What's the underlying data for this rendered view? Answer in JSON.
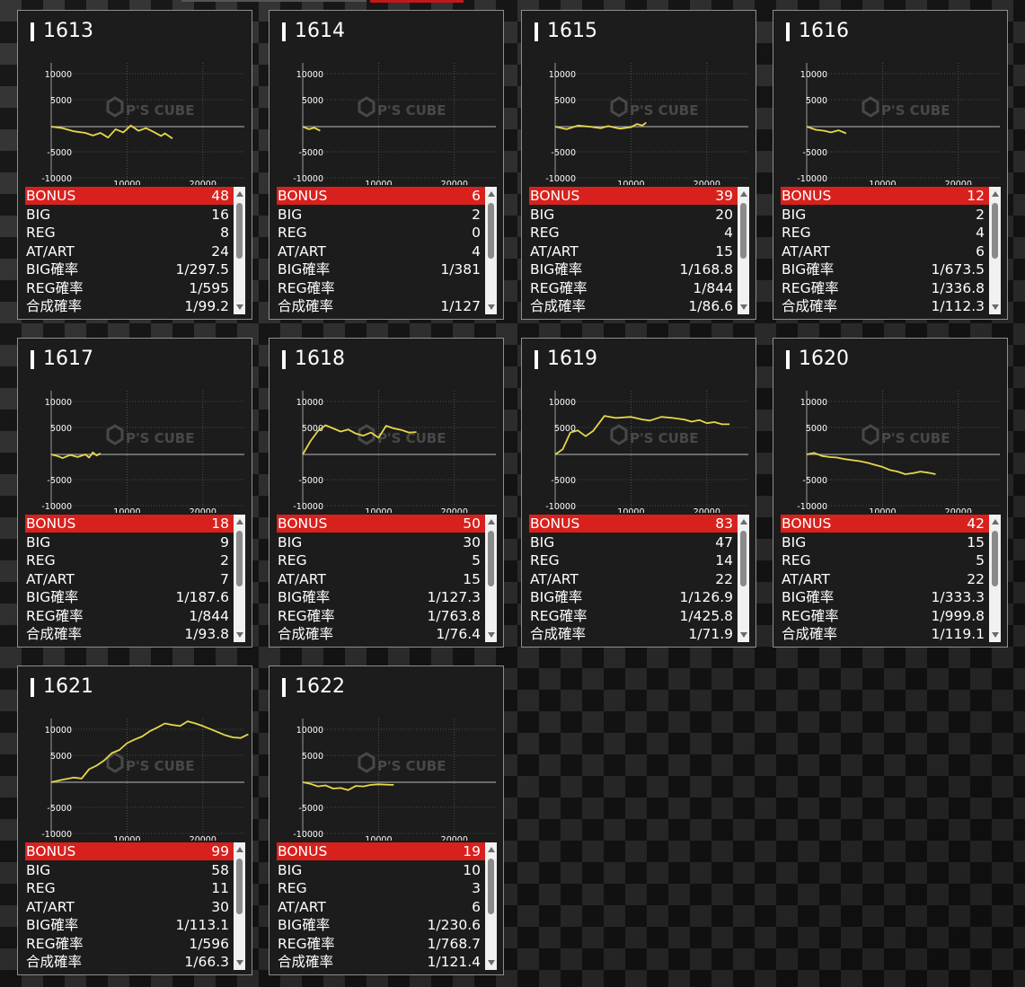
{
  "labels": {
    "bonus": "BONUS",
    "big": "BIG",
    "reg": "REG",
    "atart": "AT/ART",
    "big_rate": "BIG確率",
    "reg_rate": "REG確率",
    "total_rate": "合成確率"
  },
  "axis": {
    "y_ticks": [
      "10000",
      "5000",
      "-5000",
      "-10000"
    ],
    "x_ticks": [
      "10000",
      "20000"
    ],
    "y_range": [
      -12000,
      12000
    ],
    "x_range": [
      0,
      28000
    ]
  },
  "watermark": "P'S CUBE",
  "colors": {
    "line": "#e6d84a",
    "bonus_bg": "#d8211d",
    "card_bg": "#1c1c1c"
  },
  "machines": [
    {
      "id": "1613",
      "bonus": "48",
      "big": "16",
      "reg": "8",
      "atart": "24",
      "big_rate": "1/297.5",
      "reg_rate": "1/595",
      "total_rate": "1/99.2",
      "graph": [
        [
          0,
          0
        ],
        [
          1500,
          -300
        ],
        [
          3000,
          -900
        ],
        [
          4500,
          -1200
        ],
        [
          5500,
          -1700
        ],
        [
          6500,
          -1200
        ],
        [
          7500,
          -2100
        ],
        [
          8500,
          -500
        ],
        [
          9500,
          -1100
        ],
        [
          10500,
          200
        ],
        [
          11500,
          -800
        ],
        [
          12500,
          -300
        ],
        [
          13500,
          -1000
        ],
        [
          14500,
          -1800
        ],
        [
          15000,
          -1300
        ],
        [
          16000,
          -2300
        ]
      ]
    },
    {
      "id": "1614",
      "bonus": "6",
      "big": "2",
      "reg": "0",
      "atart": "4",
      "big_rate": "1/381",
      "reg_rate": "",
      "total_rate": "1/127",
      "graph": [
        [
          0,
          0
        ],
        [
          800,
          -500
        ],
        [
          1500,
          -200
        ],
        [
          2300,
          -800
        ]
      ]
    },
    {
      "id": "1615",
      "bonus": "39",
      "big": "20",
      "reg": "4",
      "atart": "15",
      "big_rate": "1/168.8",
      "reg_rate": "1/844",
      "total_rate": "1/86.6",
      "graph": [
        [
          0,
          0
        ],
        [
          1500,
          -500
        ],
        [
          3000,
          200
        ],
        [
          4500,
          0
        ],
        [
          6000,
          -300
        ],
        [
          7000,
          100
        ],
        [
          8500,
          -400
        ],
        [
          10000,
          -100
        ],
        [
          10800,
          500
        ],
        [
          11500,
          200
        ],
        [
          12000,
          800
        ]
      ]
    },
    {
      "id": "1616",
      "bonus": "12",
      "big": "2",
      "reg": "4",
      "atart": "6",
      "big_rate": "1/673.5",
      "reg_rate": "1/336.8",
      "total_rate": "1/112.3",
      "graph": [
        [
          0,
          0
        ],
        [
          1200,
          -600
        ],
        [
          2300,
          -800
        ],
        [
          3200,
          -1100
        ],
        [
          4200,
          -700
        ],
        [
          5200,
          -1300
        ]
      ]
    },
    {
      "id": "1617",
      "bonus": "18",
      "big": "9",
      "reg": "2",
      "atart": "7",
      "big_rate": "1/187.6",
      "reg_rate": "1/844",
      "total_rate": "1/93.8",
      "graph": [
        [
          0,
          0
        ],
        [
          800,
          -300
        ],
        [
          1500,
          -700
        ],
        [
          2500,
          -100
        ],
        [
          3500,
          -500
        ],
        [
          4500,
          0
        ],
        [
          5000,
          -600
        ],
        [
          5500,
          400
        ],
        [
          6000,
          -200
        ],
        [
          6500,
          200
        ]
      ]
    },
    {
      "id": "1618",
      "bonus": "50",
      "big": "30",
      "reg": "5",
      "atart": "15",
      "big_rate": "1/127.3",
      "reg_rate": "1/763.8",
      "total_rate": "1/76.4",
      "graph": [
        [
          0,
          0
        ],
        [
          1000,
          2500
        ],
        [
          2000,
          4500
        ],
        [
          3000,
          5600
        ],
        [
          4000,
          5000
        ],
        [
          5000,
          4400
        ],
        [
          6000,
          4800
        ],
        [
          7000,
          4000
        ],
        [
          8000,
          3600
        ],
        [
          9000,
          4200
        ],
        [
          10000,
          3200
        ],
        [
          11000,
          5500
        ],
        [
          12000,
          5000
        ],
        [
          13000,
          4700
        ],
        [
          14000,
          4200
        ],
        [
          15000,
          4300
        ]
      ]
    },
    {
      "id": "1619",
      "bonus": "83",
      "big": "47",
      "reg": "14",
      "atart": "22",
      "big_rate": "1/126.9",
      "reg_rate": "1/425.8",
      "total_rate": "1/71.9",
      "graph": [
        [
          0,
          0
        ],
        [
          1000,
          1000
        ],
        [
          2000,
          4200
        ],
        [
          3000,
          4600
        ],
        [
          4000,
          3500
        ],
        [
          5000,
          4500
        ],
        [
          6500,
          7400
        ],
        [
          8000,
          7000
        ],
        [
          10000,
          7200
        ],
        [
          11500,
          6700
        ],
        [
          12500,
          6500
        ],
        [
          14000,
          7200
        ],
        [
          15500,
          7000
        ],
        [
          17000,
          6700
        ],
        [
          18000,
          6300
        ],
        [
          19000,
          6600
        ],
        [
          20000,
          6000
        ],
        [
          21000,
          6200
        ],
        [
          22000,
          5800
        ],
        [
          23000,
          5800
        ]
      ]
    },
    {
      "id": "1620",
      "bonus": "42",
      "big": "15",
      "reg": "5",
      "atart": "22",
      "big_rate": "1/333.3",
      "reg_rate": "1/999.8",
      "total_rate": "1/119.1",
      "graph": [
        [
          0,
          0
        ],
        [
          1000,
          300
        ],
        [
          2000,
          -300
        ],
        [
          3000,
          -500
        ],
        [
          4000,
          -600
        ],
        [
          5000,
          -900
        ],
        [
          6000,
          -1100
        ],
        [
          7000,
          -1300
        ],
        [
          8000,
          -1600
        ],
        [
          9000,
          -2000
        ],
        [
          10000,
          -2400
        ],
        [
          11000,
          -3000
        ],
        [
          12000,
          -3300
        ],
        [
          13000,
          -3800
        ],
        [
          14000,
          -3600
        ],
        [
          15000,
          -3300
        ],
        [
          16000,
          -3500
        ],
        [
          17000,
          -3800
        ]
      ]
    },
    {
      "id": "1621",
      "bonus": "99",
      "big": "58",
      "reg": "11",
      "atart": "30",
      "big_rate": "1/113.1",
      "reg_rate": "1/596",
      "total_rate": "1/66.3",
      "graph": [
        [
          0,
          0
        ],
        [
          1500,
          500
        ],
        [
          3000,
          900
        ],
        [
          4000,
          700
        ],
        [
          5000,
          2500
        ],
        [
          6000,
          3200
        ],
        [
          7000,
          4200
        ],
        [
          8000,
          5600
        ],
        [
          9000,
          6200
        ],
        [
          10000,
          7500
        ],
        [
          11000,
          8200
        ],
        [
          12000,
          8800
        ],
        [
          13000,
          9800
        ],
        [
          14000,
          10500
        ],
        [
          15000,
          11300
        ],
        [
          16000,
          11000
        ],
        [
          17000,
          10800
        ],
        [
          18000,
          11700
        ],
        [
          19000,
          11300
        ],
        [
          20000,
          10800
        ],
        [
          21000,
          10200
        ],
        [
          22000,
          9600
        ],
        [
          23000,
          9000
        ],
        [
          24000,
          8600
        ],
        [
          25000,
          8500
        ],
        [
          26000,
          9200
        ]
      ]
    },
    {
      "id": "1622",
      "bonus": "19",
      "big": "10",
      "reg": "3",
      "atart": "6",
      "big_rate": "1/230.6",
      "reg_rate": "1/768.7",
      "total_rate": "1/121.4",
      "graph": [
        [
          0,
          0
        ],
        [
          1000,
          -300
        ],
        [
          2000,
          -800
        ],
        [
          3000,
          -600
        ],
        [
          4000,
          -1200
        ],
        [
          5000,
          -1100
        ],
        [
          6000,
          -1500
        ],
        [
          7000,
          -700
        ],
        [
          8000,
          -800
        ],
        [
          9000,
          -500
        ],
        [
          10000,
          -400
        ],
        [
          11500,
          -500
        ],
        [
          12000,
          -500
        ]
      ]
    }
  ]
}
